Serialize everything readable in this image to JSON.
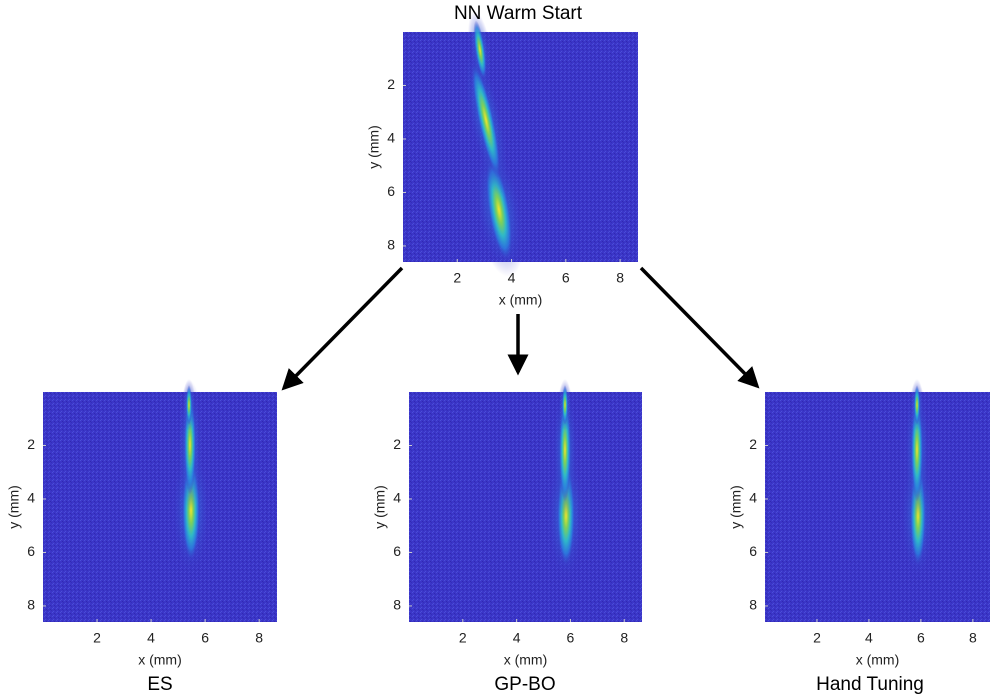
{
  "panels": [
    {
      "title": "NN Warm Start",
      "xlabel": "x (mm)",
      "ylabel": "y (mm)",
      "xlim": [
        0,
        8.66
      ],
      "ylim": [
        0,
        8.6
      ],
      "xticks": [
        2,
        4,
        6,
        8
      ],
      "yticks": [
        2,
        4,
        6,
        8
      ]
    },
    {
      "title": "ES",
      "xlabel": "x (mm)",
      "ylabel": "y (mm)",
      "xlim": [
        0,
        8.66
      ],
      "ylim": [
        0,
        8.6
      ],
      "xticks": [
        2,
        4,
        6,
        8
      ],
      "yticks": [
        2,
        4,
        6,
        8
      ]
    },
    {
      "title": "GP-BO",
      "xlabel": "x (mm)",
      "ylabel": "y (mm)",
      "xlim": [
        0,
        8.66
      ],
      "ylim": [
        0,
        8.6
      ],
      "xticks": [
        2,
        4,
        6,
        8
      ],
      "yticks": [
        2,
        4,
        6,
        8
      ]
    },
    {
      "title": "Hand Tuning",
      "xlabel": "x (mm)",
      "ylabel": "y (mm)",
      "xlim": [
        0,
        8.66
      ],
      "ylim": [
        0,
        8.6
      ],
      "xticks": [
        2,
        4,
        6,
        8
      ],
      "yticks": [
        2,
        4,
        6,
        8
      ]
    }
  ]
}
